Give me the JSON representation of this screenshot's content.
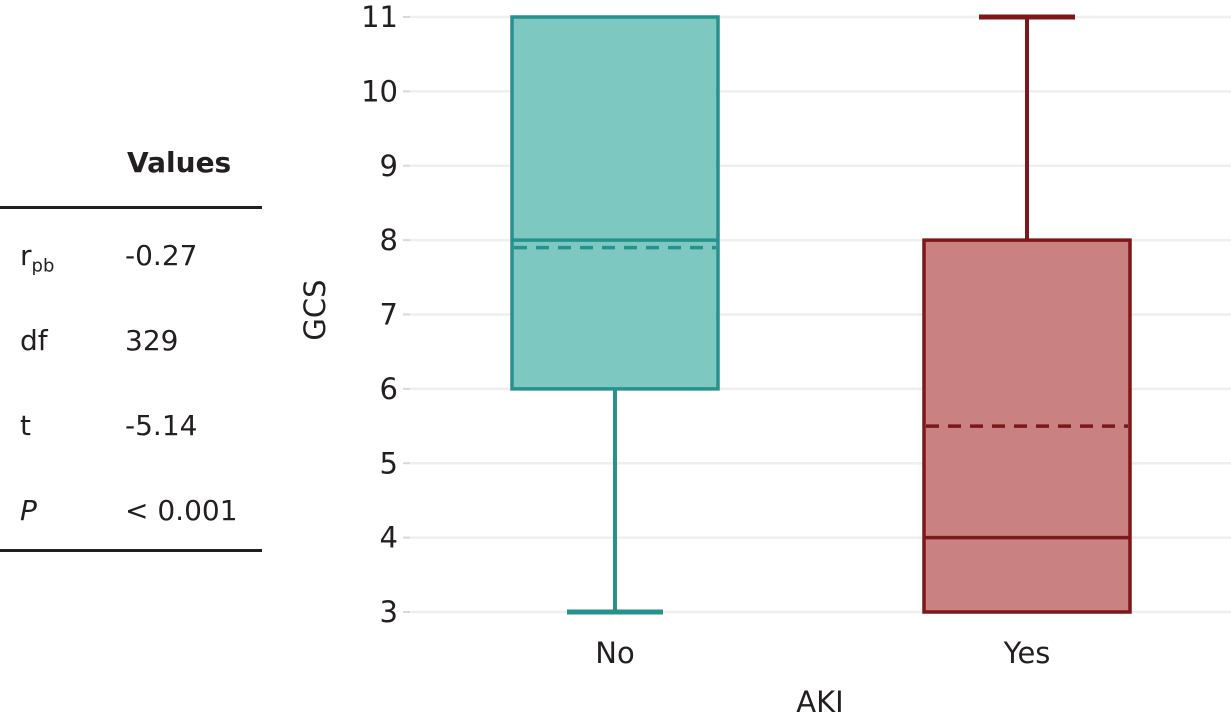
{
  "figure": {
    "background": "#ffffff",
    "text_color": "#231f20"
  },
  "stats_table": {
    "header": "Values",
    "rows": [
      {
        "label": "r",
        "label_sub": "pb",
        "label_italic": false,
        "value": "-0.27"
      },
      {
        "label": "df",
        "label_sub": "",
        "label_italic": false,
        "value": "329"
      },
      {
        "label": "t",
        "label_sub": "",
        "label_italic": false,
        "value": "-5.14"
      },
      {
        "label": "P",
        "label_sub": "",
        "label_italic": true,
        "value": "< 0.001"
      }
    ]
  },
  "chart_data": {
    "type": "boxplot",
    "title": "",
    "xlabel": "AKI",
    "ylabel": "GCS",
    "ylim": [
      3,
      11
    ],
    "yticks": [
      3,
      4,
      5,
      6,
      7,
      8,
      9,
      10,
      11
    ],
    "grid": true,
    "legend": "none",
    "categories": [
      "No",
      "Yes"
    ],
    "series": [
      {
        "label": "No",
        "min": 3,
        "q1": 6,
        "median": 8,
        "q3": 11,
        "max": 11,
        "mean": 7.9,
        "fill": "#7ec8c2",
        "stroke": "#27918d"
      },
      {
        "label": "Yes",
        "min": 3,
        "q1": 3,
        "median": 4,
        "q3": 8,
        "max": 11,
        "mean": 5.5,
        "fill": "#c98182",
        "stroke": "#7c181a"
      }
    ],
    "grid_color": "#f1efee",
    "tick_color": "#dcd8d5"
  }
}
